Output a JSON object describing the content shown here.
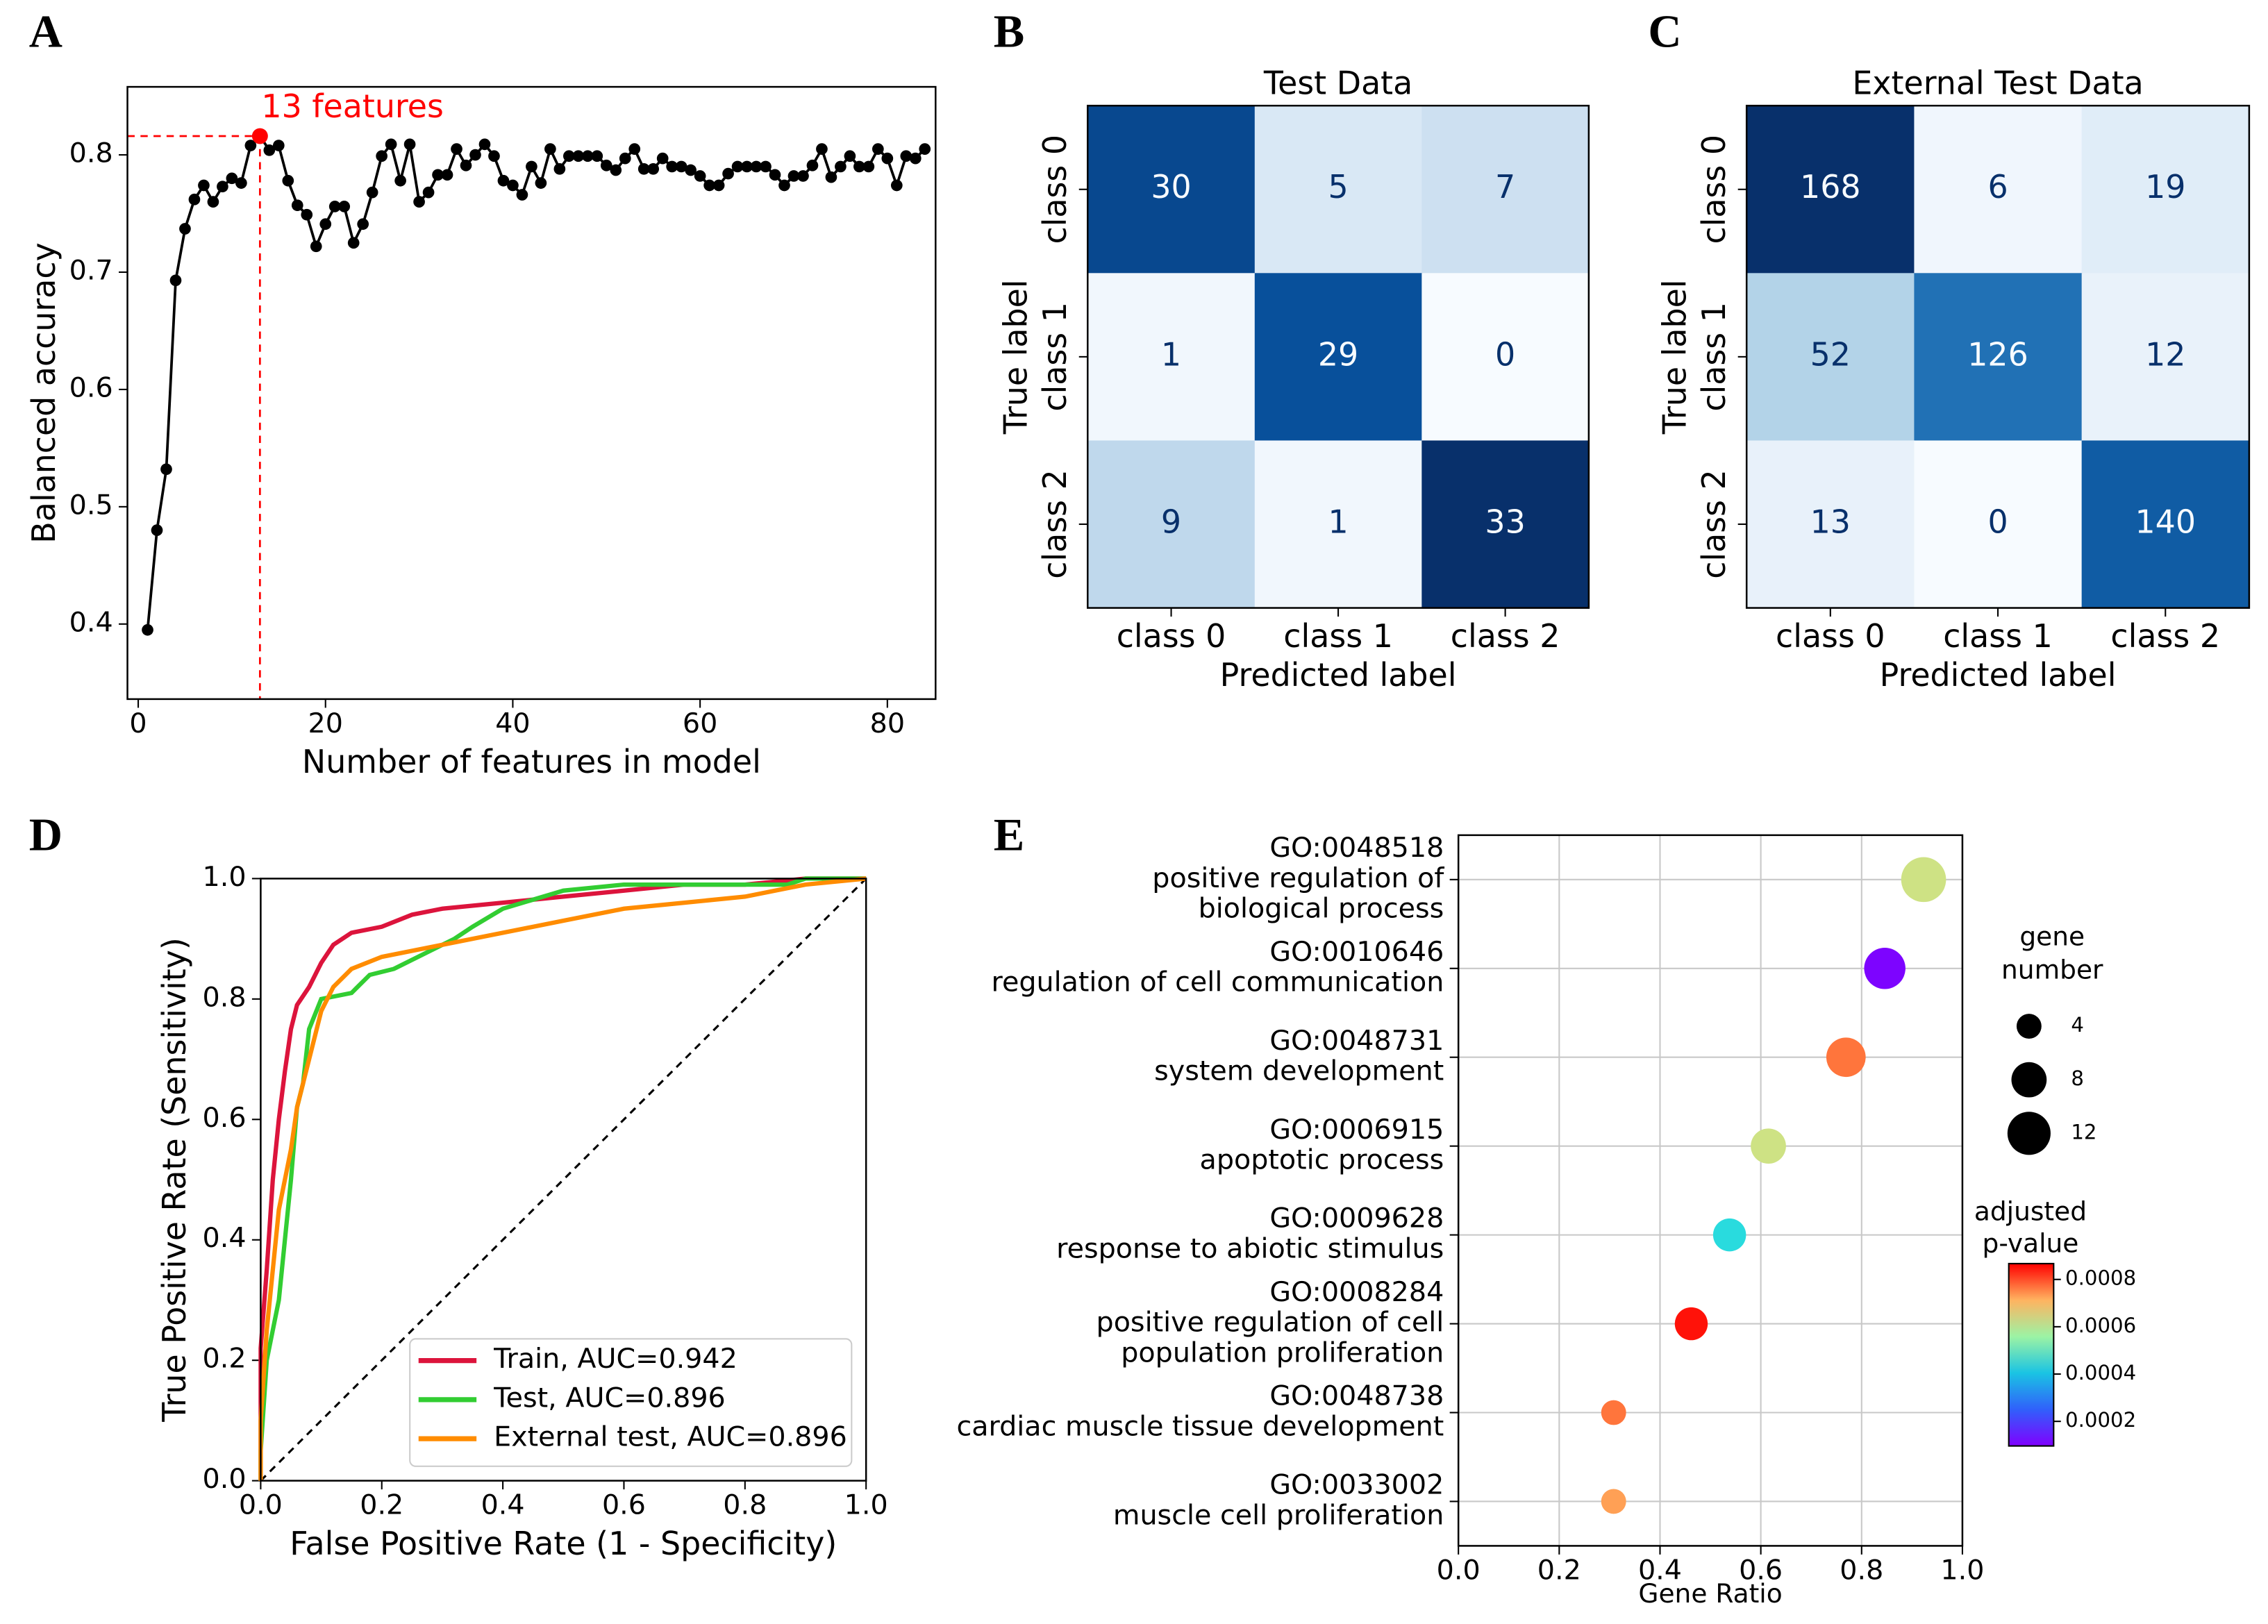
{
  "chart_data": [
    {
      "type": "line",
      "panel": "A",
      "xlabel": "Number of features in model",
      "ylabel": "Balanced accuracy",
      "x": [
        1,
        2,
        3,
        4,
        5,
        6,
        7,
        8,
        9,
        10,
        11,
        12,
        13,
        14,
        15,
        16,
        17,
        18,
        19,
        20,
        21,
        22,
        23,
        24,
        25,
        26,
        27,
        28,
        29,
        30,
        31,
        32,
        33,
        34,
        35,
        36,
        37,
        38,
        39,
        40,
        41,
        42,
        43,
        44,
        45,
        46,
        47,
        48,
        49,
        50,
        51,
        52,
        53,
        54,
        55,
        56,
        57,
        58,
        59,
        60,
        61,
        62,
        63,
        64,
        65,
        66,
        67,
        68,
        69,
        70,
        71,
        72,
        73,
        74,
        75,
        76,
        77,
        78,
        79,
        80,
        81,
        82,
        83,
        84
      ],
      "series": [
        {
          "color": "#000000",
          "values": [
            0.395,
            0.48,
            0.532,
            0.693,
            0.737,
            0.762,
            0.774,
            0.76,
            0.773,
            0.78,
            0.776,
            0.808,
            0.816,
            0.804,
            0.808,
            0.778,
            0.757,
            0.749,
            0.722,
            0.741,
            0.756,
            0.756,
            0.725,
            0.741,
            0.768,
            0.799,
            0.809,
            0.778,
            0.809,
            0.76,
            0.768,
            0.783,
            0.783,
            0.805,
            0.791,
            0.8,
            0.809,
            0.799,
            0.778,
            0.774,
            0.766,
            0.79,
            0.776,
            0.805,
            0.788,
            0.799,
            0.799,
            0.799,
            0.799,
            0.791,
            0.787,
            0.797,
            0.805,
            0.788,
            0.788,
            0.797,
            0.79,
            0.79,
            0.787,
            0.782,
            0.774,
            0.774,
            0.784,
            0.79,
            0.79,
            0.79,
            0.79,
            0.783,
            0.774,
            0.782,
            0.782,
            0.791,
            0.805,
            0.781,
            0.79,
            0.799,
            0.79,
            0.79,
            0.805,
            0.797,
            0.774,
            0.799,
            0.797,
            0.805
          ]
        }
      ],
      "markers": true,
      "annotation": {
        "text": "13 features",
        "x": 13,
        "y": 0.816,
        "color": "#ff0000"
      },
      "xlim": [
        -1.15,
        85.15
      ],
      "ylim": [
        0.336,
        0.858
      ],
      "xticks": [
        0,
        20,
        40,
        60,
        80
      ],
      "yticks": [
        0.4,
        0.5,
        0.6,
        0.7,
        0.8
      ]
    },
    {
      "type": "heatmap",
      "panel": "B",
      "title": "Test Data",
      "xlabel": "Predicted label",
      "ylabel": "True label",
      "categories": [
        "class 0",
        "class 1",
        "class 2"
      ],
      "ycategories": [
        "class 0",
        "class 1",
        "class 2"
      ],
      "values": [
        [
          30,
          5,
          7
        ],
        [
          1,
          29,
          0
        ],
        [
          9,
          1,
          33
        ]
      ],
      "colormap": "Blues"
    },
    {
      "type": "heatmap",
      "panel": "C",
      "title": "External Test Data",
      "xlabel": "Predicted label",
      "ylabel": "True label",
      "categories": [
        "class 0",
        "class 1",
        "class 2"
      ],
      "ycategories": [
        "class 0",
        "class 1",
        "class 2"
      ],
      "values": [
        [
          168,
          6,
          19
        ],
        [
          52,
          126,
          12
        ],
        [
          13,
          0,
          140
        ]
      ],
      "colormap": "Blues"
    },
    {
      "type": "line",
      "panel": "D",
      "xlabel": "False Positive Rate (1 - Specificity)",
      "ylabel": "True Positive Rate (Sensitivity)",
      "series": [
        {
          "name": "Train, AUC=0.942",
          "color": "#dc143c",
          "x": [
            0,
            0,
            0.01,
            0.02,
            0.03,
            0.04,
            0.05,
            0.06,
            0.08,
            0.1,
            0.12,
            0.15,
            0.2,
            0.25,
            0.3,
            0.4,
            0.5,
            0.6,
            0.7,
            0.8,
            0.9,
            1
          ],
          "values": [
            0,
            0.22,
            0.35,
            0.5,
            0.6,
            0.68,
            0.75,
            0.79,
            0.82,
            0.86,
            0.89,
            0.91,
            0.92,
            0.94,
            0.95,
            0.96,
            0.97,
            0.98,
            0.99,
            0.99,
            1,
            1
          ]
        },
        {
          "name": "Test, AUC=0.896",
          "color": "#32cd32",
          "x": [
            0,
            0,
            0.01,
            0.02,
            0.03,
            0.04,
            0.05,
            0.06,
            0.07,
            0.08,
            0.1,
            0.15,
            0.18,
            0.22,
            0.28,
            0.32,
            0.35,
            0.4,
            0.5,
            0.6,
            0.87,
            0.9,
            1
          ],
          "values": [
            0,
            0.05,
            0.2,
            0.25,
            0.3,
            0.4,
            0.5,
            0.62,
            0.66,
            0.75,
            0.8,
            0.81,
            0.84,
            0.85,
            0.88,
            0.9,
            0.92,
            0.95,
            0.98,
            0.99,
            0.99,
            1,
            1
          ]
        },
        {
          "name": "External test, AUC=0.896",
          "color": "#ff8c00",
          "x": [
            0,
            0,
            0.01,
            0.02,
            0.03,
            0.05,
            0.06,
            0.08,
            0.1,
            0.12,
            0.15,
            0.2,
            0.3,
            0.4,
            0.5,
            0.6,
            0.7,
            0.8,
            0.9,
            1
          ],
          "values": [
            0,
            0.1,
            0.25,
            0.35,
            0.45,
            0.55,
            0.62,
            0.7,
            0.78,
            0.82,
            0.85,
            0.87,
            0.89,
            0.91,
            0.93,
            0.95,
            0.96,
            0.97,
            0.99,
            1
          ]
        }
      ],
      "diagonal": true,
      "legend": "lower right",
      "xlim": [
        0,
        1
      ],
      "ylim": [
        0,
        1
      ],
      "xticks": [
        {
          "value": 0,
          "label": "0.0"
        },
        0.2,
        0.4,
        0.6,
        0.8,
        {
          "value": 1,
          "label": "1.0"
        }
      ],
      "yticks": [
        {
          "value": 0,
          "label": "0.0"
        },
        0.2,
        0.4,
        0.6,
        0.8,
        {
          "value": 1,
          "label": "1.0"
        }
      ]
    },
    {
      "type": "scatter",
      "panel": "E",
      "xlabel": "Gene Ratio",
      "categories": [
        [
          "GO:0048518",
          "positive regulation of",
          "biological process"
        ],
        [
          "GO:0010646",
          "regulation of cell communication"
        ],
        [
          "GO:0048731",
          "system development"
        ],
        [
          "GO:0006915",
          "apoptotic process"
        ],
        [
          "GO:0009628",
          "response to abiotic stimulus"
        ],
        [
          "GO:0008284",
          "positive regulation of cell",
          "population proliferation"
        ],
        [
          "GO:0048738",
          "cardiac muscle tissue development"
        ],
        [
          "GO:0033002",
          "muscle cell proliferation"
        ]
      ],
      "x": [
        0.923,
        0.846,
        0.769,
        0.615,
        0.538,
        0.462,
        0.308,
        0.308
      ],
      "sizes": [
        13,
        11,
        10,
        8,
        7,
        7,
        4,
        4
      ],
      "pvalues": [
        0.0006,
        0.0001,
        0.00075,
        0.0006,
        0.00035,
        0.00085,
        0.00075,
        0.0007
      ],
      "size_legend": {
        "title": [
          "gene",
          "number"
        ],
        "values": [
          4,
          8,
          12
        ]
      },
      "colorbar": {
        "title": [
          "adjusted",
          "p-value"
        ],
        "colormap": "rainbow",
        "clim": [
          9.6e-05,
          0.000867
        ],
        "ticks": [
          0.0002,
          0.0004,
          0.0006,
          0.0008
        ]
      },
      "grid": true,
      "xlim": [
        0,
        1
      ],
      "xticks": [
        {
          "value": 0,
          "label": "0.0"
        },
        0.2,
        0.4,
        0.6,
        0.8,
        {
          "value": 1,
          "label": "1.0"
        }
      ]
    }
  ]
}
